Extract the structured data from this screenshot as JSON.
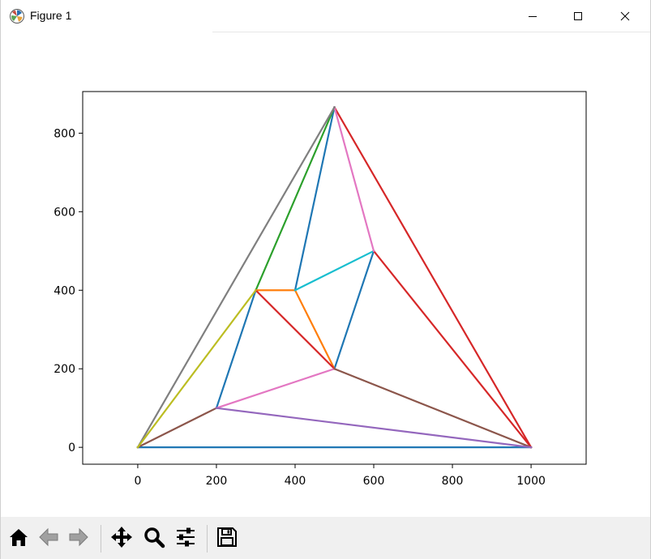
{
  "window": {
    "title": "Figure 1",
    "controls": [
      "minimize-icon",
      "maximize-icon",
      "close-icon"
    ]
  },
  "toolbar": {
    "buttons": [
      "home-icon",
      "back-arrow-icon",
      "forward-arrow-icon",
      "pan-icon",
      "zoom-icon",
      "configure-subplots-icon",
      "save-icon"
    ]
  },
  "chart_data": {
    "type": "line",
    "title": "",
    "xlabel": "",
    "ylabel": "",
    "xlim": [
      -140,
      1140
    ],
    "ylim": [
      -43,
      906
    ],
    "xticks": [
      0,
      200,
      400,
      600,
      800,
      1000
    ],
    "yticks": [
      0,
      200,
      400,
      600,
      800
    ],
    "grid": false,
    "series": [
      {
        "color": "#1f77b4",
        "x": [
          0,
          1000
        ],
        "y": [
          0,
          0
        ]
      },
      {
        "color": "#1f77b4",
        "x": [
          200,
          300
        ],
        "y": [
          100,
          400
        ]
      },
      {
        "color": "#1f77b4",
        "x": [
          400,
          500
        ],
        "y": [
          400,
          866
        ]
      },
      {
        "color": "#1f77b4",
        "x": [
          500,
          600
        ],
        "y": [
          200,
          500
        ]
      },
      {
        "color": "#2ca02c",
        "x": [
          300,
          500
        ],
        "y": [
          400,
          866
        ]
      },
      {
        "color": "#ff7f0e",
        "x": [
          300,
          400
        ],
        "y": [
          400,
          400
        ]
      },
      {
        "color": "#ff7f0e",
        "x": [
          400,
          500
        ],
        "y": [
          400,
          200
        ]
      },
      {
        "color": "#17becf",
        "x": [
          400,
          600
        ],
        "y": [
          400,
          500
        ]
      },
      {
        "color": "#d62728",
        "x": [
          300,
          500
        ],
        "y": [
          400,
          200
        ]
      },
      {
        "color": "#d62728",
        "x": [
          500,
          1000
        ],
        "y": [
          866,
          0
        ]
      },
      {
        "color": "#d62728",
        "x": [
          600,
          1000
        ],
        "y": [
          500,
          0
        ]
      },
      {
        "color": "#e377c2",
        "x": [
          500,
          600
        ],
        "y": [
          866,
          500
        ]
      },
      {
        "color": "#e377c2",
        "x": [
          200,
          500
        ],
        "y": [
          100,
          200
        ]
      },
      {
        "color": "#8c564b",
        "x": [
          0,
          200
        ],
        "y": [
          0,
          100
        ]
      },
      {
        "color": "#8c564b",
        "x": [
          500,
          1000
        ],
        "y": [
          200,
          0
        ]
      },
      {
        "color": "#9467bd",
        "x": [
          200,
          1000
        ],
        "y": [
          100,
          0
        ]
      },
      {
        "color": "#7f7f7f",
        "x": [
          0,
          500
        ],
        "y": [
          0,
          866
        ]
      },
      {
        "color": "#bcbd22",
        "x": [
          0,
          300
        ],
        "y": [
          0,
          400
        ]
      }
    ]
  }
}
